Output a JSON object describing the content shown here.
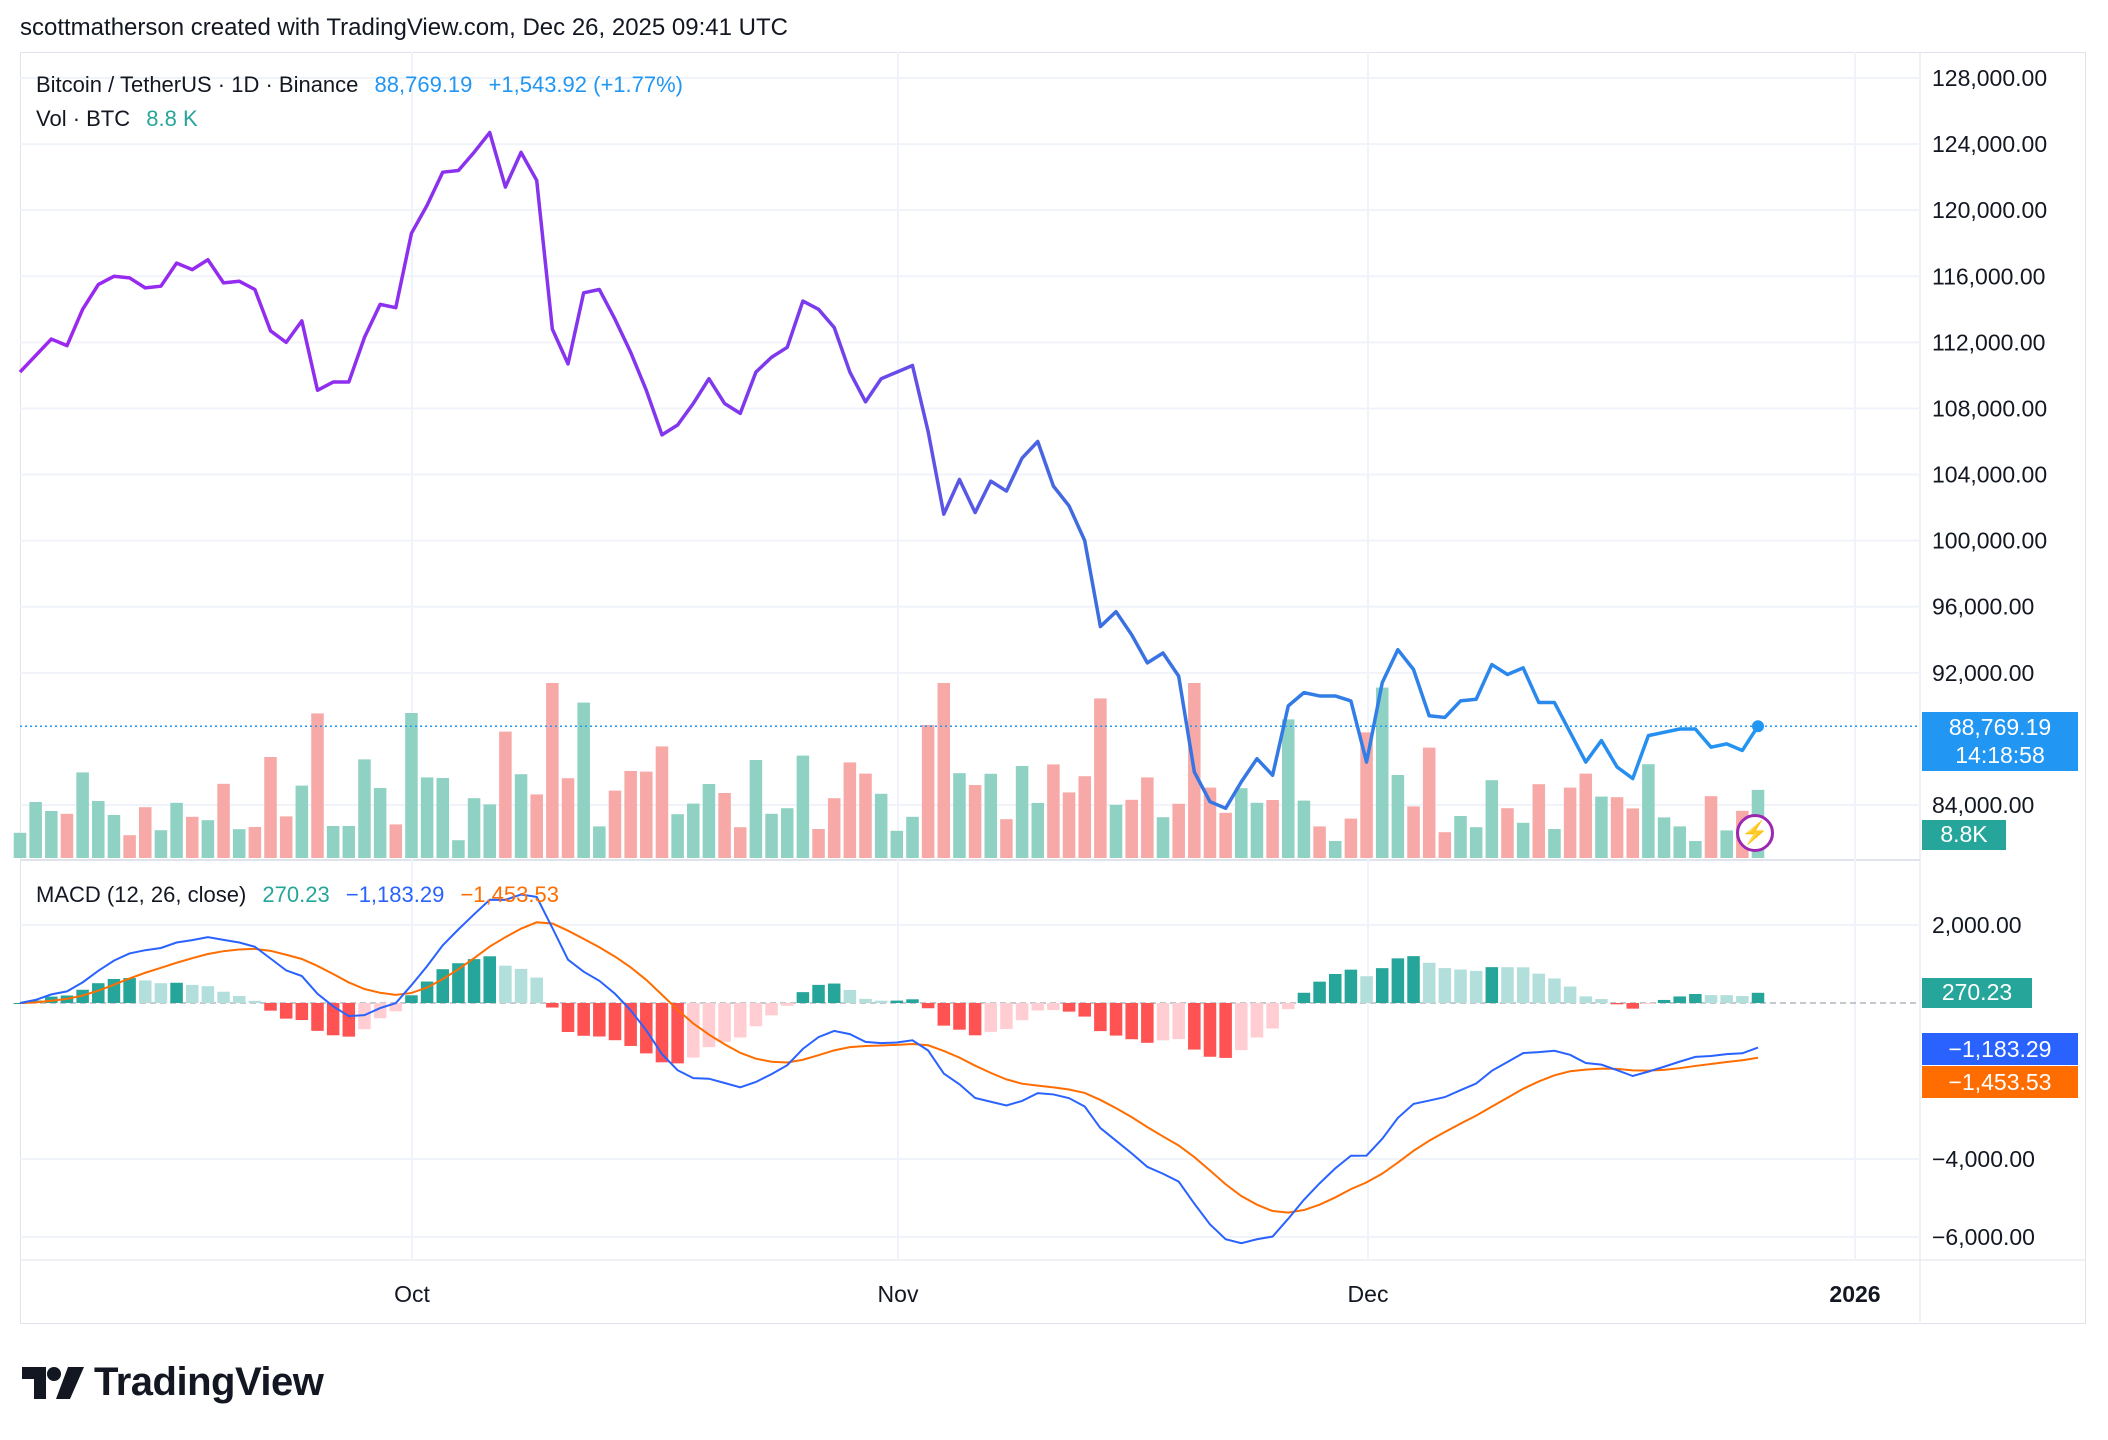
{
  "header": {
    "attribution": "scottmatherson created with TradingView.com, Dec 26, 2025 09:41 UTC"
  },
  "legend": {
    "symbol": "Bitcoin / TetherUS · 1D · Binance",
    "price": "88,769.19",
    "change": "+1,543.92 (+1.77%)",
    "vol_label": "Vol · BTC",
    "vol_value": "8.8 K",
    "macd_label": "MACD (12, 26, close)",
    "macd_hist": "270.23",
    "macd_line": "−1,183.29",
    "macd_signal": "−1,453.53"
  },
  "price_axis": [
    "128,000.00",
    "124,000.00",
    "120,000.00",
    "116,000.00",
    "112,000.00",
    "108,000.00",
    "104,000.00",
    "100,000.00",
    "96,000.00",
    "92,000.00",
    "84,000.00"
  ],
  "macd_axis": [
    "2,000.00",
    "−4,000.00",
    "−6,000.00"
  ],
  "time_axis": [
    "Oct",
    "Nov",
    "Dec",
    "2026"
  ],
  "tags": {
    "price": "88,769.19",
    "countdown": "14:18:58",
    "volume": "8.8K",
    "hist": "270.23",
    "macd": "−1,183.29",
    "signal": "−1,453.53"
  },
  "brand": "TradingView",
  "colors": {
    "price_line_start": "#9c27f0",
    "price_line_end": "#2196f3",
    "vol_up": "#8fd1c3",
    "vol_down": "#f7a9a7",
    "hist_up_strong": "#26a69a",
    "hist_up_weak": "#b2dfdb",
    "hist_down_strong": "#ff5252",
    "hist_down_weak": "#ffcdd2",
    "macd_line": "#2962ff",
    "signal_line": "#ff6d00",
    "price_tag": "#2196f3"
  },
  "chart_data": {
    "type": "line",
    "title": "Bitcoin / TetherUS · 1D · Binance",
    "x_range": [
      "2025-09-07",
      "2025-12-26"
    ],
    "ylim_price": [
      80000,
      128000
    ],
    "ylim_macd": [
      -6500,
      2500
    ],
    "price": [
      110200,
      111200,
      112200,
      111800,
      114000,
      115500,
      116000,
      115900,
      115300,
      115400,
      116800,
      116400,
      117000,
      115600,
      115700,
      115200,
      112700,
      112000,
      113300,
      109100,
      109600,
      109600,
      112300,
      114300,
      114100,
      118600,
      120300,
      122300,
      122400,
      123500,
      124700,
      121400,
      123500,
      121800,
      112800,
      110700,
      115000,
      115200,
      113400,
      111400,
      109100,
      106400,
      107000,
      108300,
      109800,
      108300,
      107700,
      110200,
      111100,
      111700,
      114500,
      114000,
      112900,
      110200,
      108400,
      109800,
      110200,
      110600,
      106600,
      101600,
      103700,
      101700,
      103600,
      103000,
      105000,
      106000,
      103300,
      102100,
      100000,
      94800,
      95700,
      94300,
      92600,
      93200,
      91800,
      86000,
      84200,
      83800,
      85400,
      86800,
      85800,
      90000,
      90800,
      90600,
      90600,
      90300,
      86600,
      91400,
      93400,
      92200,
      89400,
      89300,
      90300,
      90400,
      92500,
      91900,
      92300,
      90200,
      90200,
      88400,
      86600,
      87900,
      86300,
      85600,
      88200,
      88400,
      88600,
      88600,
      87500,
      87700,
      87300,
      88769
    ]
  }
}
